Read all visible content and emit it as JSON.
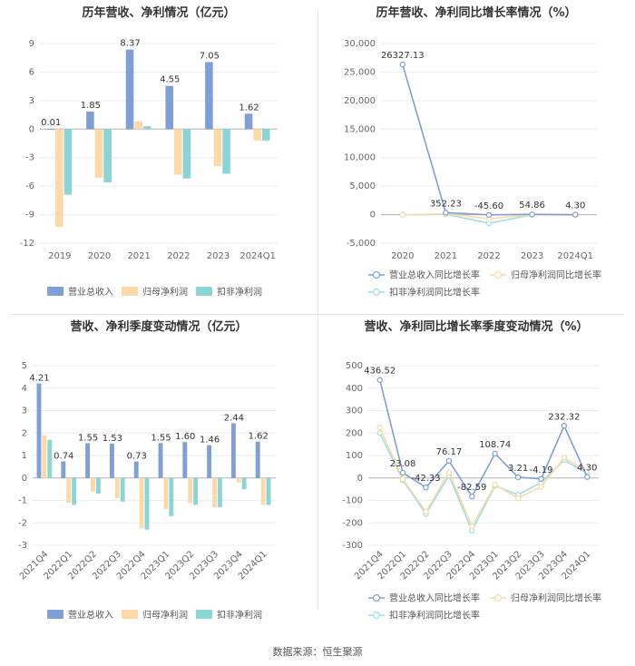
{
  "source": "数据来源：恒生聚源",
  "colors": {
    "revenue": "#7f9fd6",
    "net": "#fcd9a6",
    "deducted": "#8ad6d6",
    "line_revenue": "#7f9fd6",
    "line_net": "#fcd9a6",
    "line_deducted": "#9ee0e0"
  },
  "chart_data": [
    {
      "type": "bar",
      "title": "历年营收、净利情况（亿元）",
      "categories": [
        "2019",
        "2020",
        "2021",
        "2022",
        "2023",
        "2024Q1"
      ],
      "ylim": [
        -12,
        9
      ],
      "yticks": [
        "9",
        "6",
        "3",
        "0",
        "-3",
        "-6",
        "-9",
        "-12"
      ],
      "series": [
        {
          "name": "营业总收入",
          "values": [
            0.01,
            1.85,
            8.37,
            4.55,
            7.05,
            1.62
          ]
        },
        {
          "name": "归母净利润",
          "values": [
            -10.3,
            -5.1,
            0.8,
            -4.8,
            -3.9,
            -1.2
          ]
        },
        {
          "name": "扣非净利润",
          "values": [
            -6.9,
            -5.6,
            0.3,
            -5.2,
            -4.7,
            -1.2
          ]
        }
      ],
      "labels": [
        "0.01",
        "1.85",
        "8.37",
        "4.55",
        "7.05",
        "1.62"
      ],
      "legend": "bottom",
      "grid": true
    },
    {
      "type": "line",
      "title": "历年营收、净利同比增长率情况（%）",
      "categories": [
        "2020",
        "2021",
        "2022",
        "2023",
        "2024Q1"
      ],
      "ylim": [
        -5000,
        30000
      ],
      "yticks": [
        "30,000",
        "25,000",
        "20,000",
        "15,000",
        "10,000",
        "5,000",
        "0",
        "-5,000"
      ],
      "series": [
        {
          "name": "营业总收入同比增长率",
          "values": [
            26327.13,
            352.23,
            -45.6,
            54.86,
            4.3
          ]
        },
        {
          "name": "归母净利润同比增长率",
          "values": [
            -50,
            150,
            -700,
            -20,
            -60
          ]
        },
        {
          "name": "扣非净利润同比增长率",
          "values": [
            -30,
            80,
            -1500,
            -40,
            -50
          ]
        }
      ],
      "labels": [
        "26327.13",
        "352.23",
        "-45.60",
        "54.86",
        "4.30"
      ],
      "legend": "bottom",
      "grid": true
    },
    {
      "type": "bar",
      "title": "营收、净利季度变动情况（亿元）",
      "categories": [
        "2021Q4",
        "2022Q1",
        "2022Q2",
        "2022Q3",
        "2022Q4",
        "2023Q1",
        "2023Q2",
        "2023Q3",
        "2023Q4",
        "2024Q1"
      ],
      "ylim": [
        -3,
        5
      ],
      "yticks": [
        "5",
        "4",
        "3",
        "2",
        "1",
        "0",
        "-1",
        "-2",
        "-3"
      ],
      "series": [
        {
          "name": "营业总收入",
          "values": [
            4.21,
            0.74,
            1.55,
            1.53,
            0.73,
            1.55,
            1.6,
            1.46,
            2.44,
            1.62
          ]
        },
        {
          "name": "归母净利润",
          "values": [
            1.9,
            -1.1,
            -0.6,
            -0.9,
            -2.25,
            -1.4,
            -1.1,
            -1.3,
            -0.2,
            -1.2
          ]
        },
        {
          "name": "扣非净利润",
          "values": [
            1.7,
            -1.2,
            -0.7,
            -1.05,
            -2.3,
            -1.7,
            -1.2,
            -1.3,
            -0.5,
            -1.2
          ]
        }
      ],
      "labels": [
        "4.21",
        "0.74",
        "1.55",
        "1.53",
        "0.73",
        "1.55",
        "1.60",
        "1.46",
        "2.44",
        "1.62"
      ],
      "legend": "bottom",
      "grid": true
    },
    {
      "type": "line",
      "title": "营收、净利同比增长率季度变动情况（%）",
      "categories": [
        "2021Q4",
        "2022Q1",
        "2022Q2",
        "2022Q3",
        "2022Q4",
        "2023Q1",
        "2023Q2",
        "2023Q3",
        "2023Q4",
        "2024Q1"
      ],
      "ylim": [
        -300,
        500
      ],
      "yticks": [
        "500",
        "400",
        "300",
        "200",
        "100",
        "0",
        "-100",
        "-200",
        "-300"
      ],
      "series": [
        {
          "name": "营业总收入同比增长率",
          "values": [
            436.52,
            23.08,
            -42.33,
            76.17,
            -82.59,
            108.74,
            3.21,
            -4.19,
            232.32,
            4.3
          ]
        },
        {
          "name": "归母净利润同比增长率",
          "values": [
            225,
            -5,
            -150,
            25,
            -215,
            -30,
            -90,
            -40,
            90,
            30
          ]
        },
        {
          "name": "扣非净利润同比增长率",
          "values": [
            200,
            -10,
            -160,
            10,
            -235,
            -35,
            -75,
            -20,
            80,
            20
          ]
        }
      ],
      "labels": [
        "436.52",
        "23.08",
        "-42.33",
        "76.17",
        "-82.59",
        "108.74",
        "3.21",
        "-4.19",
        "232.32",
        "4.30"
      ],
      "legend": "bottom",
      "grid": true
    }
  ]
}
